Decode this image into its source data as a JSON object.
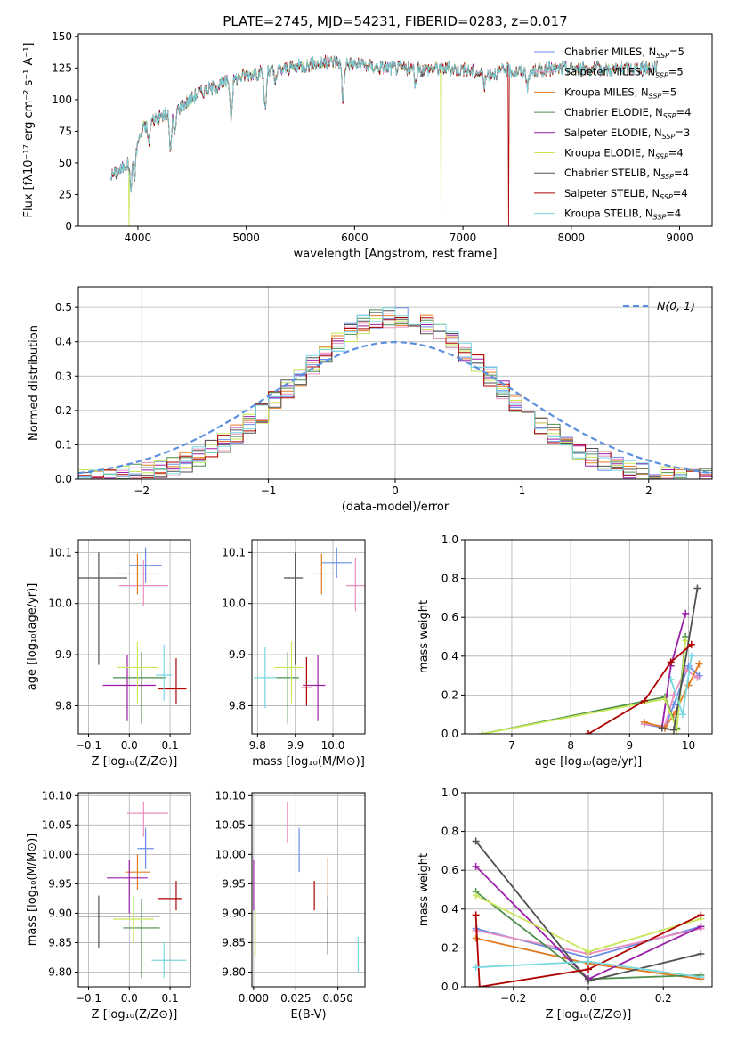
{
  "figure": {
    "title": "PLATE=2745, MJD=54231, FIBERID=0283, z=0.017"
  },
  "colors": {
    "Chabrier MILES": "#6b8ee8",
    "Salpeter MILES": "#ec8fbe",
    "Kroupa MILES": "#e07a20",
    "Chabrier ELODIE": "#4d8f4d",
    "Salpeter ELODIE": "#9b1fa8",
    "Kroupa ELODIE": "#c8e85a",
    "Chabrier STELIB": "#505050",
    "Salpeter STELIB": "#b00000",
    "Kroupa STELIB": "#78d8e0"
  },
  "chart_data": [
    {
      "id": "spectrum",
      "type": "line",
      "xlabel": "wavelength [Angstrom, rest frame]",
      "ylabel": "Flux [f_λ 10^-17 erg cm^-2 s^-1 A^-1]",
      "xlim": [
        3450,
        9300
      ],
      "ylim": [
        0,
        152
      ],
      "xticks": [
        4000,
        5000,
        6000,
        7000,
        8000,
        9000
      ],
      "yticks": [
        0,
        25,
        50,
        75,
        100,
        125,
        150
      ],
      "grid": false,
      "legend_position": "right",
      "legend": [
        {
          "label": "Chabrier MILES",
          "nssp": "5"
        },
        {
          "label": "Salpeter MILES",
          "nssp": "5"
        },
        {
          "label": "Kroupa MILES",
          "nssp": "5"
        },
        {
          "label": "Chabrier ELODIE",
          "nssp": "4"
        },
        {
          "label": "Salpeter ELODIE",
          "nssp": "3"
        },
        {
          "label": "Kroupa ELODIE",
          "nssp": "4"
        },
        {
          "label": "Chabrier STELIB",
          "nssp": "4"
        },
        {
          "label": "Salpeter STELIB",
          "nssp": "4"
        },
        {
          "label": "Kroupa STELIB",
          "nssp": "4"
        }
      ],
      "continuum": {
        "x": [
          3750,
          3850,
          3950,
          4050,
          4150,
          4250,
          4350,
          4450,
          4550,
          4700,
          4850,
          5000,
          5200,
          5400,
          5600,
          5800,
          6000,
          6200,
          6400,
          6600,
          6800,
          7000,
          7200,
          7400,
          7600,
          7800,
          8000,
          8200,
          8400,
          8600,
          8800
        ],
        "y": [
          40,
          45,
          55,
          78,
          85,
          88,
          92,
          98,
          105,
          110,
          115,
          120,
          122,
          125,
          128,
          130,
          128,
          126,
          125,
          124,
          125,
          124,
          120,
          123,
          122,
          124,
          125,
          124,
          124,
          125,
          126
        ]
      },
      "absorption_dips": [
        {
          "x": 3934,
          "depth": 22
        },
        {
          "x": 3969,
          "depth": 20
        },
        {
          "x": 4101,
          "depth": 15
        },
        {
          "x": 4300,
          "depth": 30
        },
        {
          "x": 4340,
          "depth": 20
        },
        {
          "x": 4861,
          "depth": 28
        },
        {
          "x": 5175,
          "depth": 30
        },
        {
          "x": 5270,
          "depth": 10
        },
        {
          "x": 5893,
          "depth": 30
        },
        {
          "x": 6563,
          "depth": 12
        },
        {
          "x": 7200,
          "depth": 8
        },
        {
          "x": 7600,
          "depth": 12
        }
      ],
      "spikes": [
        {
          "series": "Kroupa ELODIE",
          "x": 3920
        },
        {
          "series": "Kroupa ELODIE",
          "x": 6800
        },
        {
          "series": "Salpeter STELIB",
          "x": 7420
        }
      ]
    },
    {
      "id": "residuals",
      "type": "histogram",
      "xlabel": "(data-model)/error",
      "ylabel": "Normed distribution",
      "xlim": [
        -2.5,
        2.5
      ],
      "ylim": [
        0,
        0.56
      ],
      "xticks": [
        -2,
        -1,
        0,
        1,
        2
      ],
      "yticks": [
        0.0,
        0.1,
        0.2,
        0.3,
        0.4,
        0.5
      ],
      "grid": true,
      "legend_position": "top-right",
      "legend_label": "N(0, 1)",
      "bin_width": 0.1
    },
    {
      "id": "age_vs_Z",
      "type": "scatter",
      "xlabel": "Z [log10(Z/Z_sun)]",
      "ylabel": "age [log10(age/yr)]",
      "xlim": [
        -0.125,
        0.15
      ],
      "ylim": [
        9.745,
        10.125
      ],
      "xticks": [
        -0.1,
        0.0,
        0.1
      ],
      "yticks": [
        9.8,
        9.9,
        10.0,
        10.1
      ],
      "grid": true,
      "points": [
        {
          "series": "Chabrier MILES",
          "x": 0.04,
          "y": 10.075,
          "xerr": [
            0.04,
            0.04
          ],
          "yerr": [
            0.035,
            0.035
          ]
        },
        {
          "series": "Salpeter MILES",
          "x": 0.035,
          "y": 10.035,
          "xerr": [
            0.06,
            0.06
          ],
          "yerr": [
            0.04,
            0.05
          ]
        },
        {
          "series": "Kroupa MILES",
          "x": 0.02,
          "y": 10.058,
          "xerr": [
            0.05,
            0.05
          ],
          "yerr": [
            0.04,
            0.04
          ]
        },
        {
          "series": "Chabrier ELODIE",
          "x": 0.03,
          "y": 9.855,
          "xerr": [
            0.07,
            0.06
          ],
          "yerr": [
            0.09,
            0.05
          ]
        },
        {
          "series": "Salpeter ELODIE",
          "x": -0.005,
          "y": 9.84,
          "xerr": [
            0.06,
            0.07
          ],
          "yerr": [
            0.07,
            0.06
          ]
        },
        {
          "series": "Kroupa ELODIE",
          "x": 0.02,
          "y": 9.875,
          "xerr": [
            0.05,
            0.05
          ],
          "yerr": [
            0.07,
            0.05
          ]
        },
        {
          "series": "Chabrier STELIB",
          "x": -0.075,
          "y": 10.05,
          "xerr": [
            0.07,
            0.07
          ],
          "yerr": [
            0.17,
            0.05
          ]
        },
        {
          "series": "Salpeter STELIB",
          "x": 0.115,
          "y": 9.833,
          "xerr": [
            0.045,
            0.025
          ],
          "yerr": [
            0.03,
            0.06
          ]
        },
        {
          "series": "Kroupa STELIB",
          "x": 0.085,
          "y": 9.86,
          "xerr": [
            0.02,
            0.02
          ],
          "yerr": [
            0.05,
            0.06
          ]
        }
      ]
    },
    {
      "id": "age_vs_mass",
      "type": "scatter",
      "xlabel": "mass [log10(M/M_sun)]",
      "ylabel": "",
      "xlim": [
        9.785,
        10.085
      ],
      "ylim": [
        9.745,
        10.125
      ],
      "xticks": [
        9.8,
        9.9,
        10.0
      ],
      "yticks": [
        9.8,
        9.9,
        10.0,
        10.1
      ],
      "grid": true,
      "points": [
        {
          "series": "Chabrier MILES",
          "x": 10.01,
          "y": 10.08,
          "xerr": [
            0.04,
            0.04
          ],
          "yerr": [
            0.03,
            0.03
          ]
        },
        {
          "series": "Salpeter MILES",
          "x": 10.06,
          "y": 10.035,
          "xerr": [
            0.025,
            0.025
          ],
          "yerr": [
            0.05,
            0.055
          ]
        },
        {
          "series": "Kroupa MILES",
          "x": 9.97,
          "y": 10.058,
          "xerr": [
            0.025,
            0.025
          ],
          "yerr": [
            0.04,
            0.04
          ]
        },
        {
          "series": "Chabrier ELODIE",
          "x": 9.88,
          "y": 9.855,
          "xerr": [
            0.03,
            0.03
          ],
          "yerr": [
            0.09,
            0.05
          ]
        },
        {
          "series": "Salpeter ELODIE",
          "x": 9.96,
          "y": 9.84,
          "xerr": [
            0.04,
            0.02
          ],
          "yerr": [
            0.07,
            0.06
          ]
        },
        {
          "series": "Kroupa ELODIE",
          "x": 9.89,
          "y": 9.875,
          "xerr": [
            0.045,
            0.03
          ],
          "yerr": [
            0.07,
            0.05
          ]
        },
        {
          "series": "Chabrier STELIB",
          "x": 9.9,
          "y": 10.05,
          "xerr": [
            0.03,
            0.02
          ],
          "yerr": [
            0.17,
            0.05
          ]
        },
        {
          "series": "Salpeter STELIB",
          "x": 9.93,
          "y": 9.835,
          "xerr": [
            0.015,
            0.015
          ],
          "yerr": [
            0.035,
            0.06
          ]
        },
        {
          "series": "Kroupa STELIB",
          "x": 9.82,
          "y": 9.855,
          "xerr": [
            0.03,
            0.03
          ],
          "yerr": [
            0.06,
            0.06
          ]
        }
      ]
    },
    {
      "id": "weight_vs_age",
      "type": "line",
      "xlabel": "age [log10(age/yr)]",
      "ylabel": "mass weight",
      "xlim": [
        6.2,
        10.4
      ],
      "ylim": [
        0,
        1
      ],
      "xticks": [
        7,
        8,
        9,
        10
      ],
      "yticks": [
        0.0,
        0.2,
        0.4,
        0.6,
        0.8,
        1.0
      ],
      "grid": true,
      "series": [
        {
          "name": "Chabrier MILES",
          "x": [
            9.25,
            9.6,
            9.75,
            10.0,
            10.18
          ],
          "y": [
            0.05,
            0.03,
            0.15,
            0.35,
            0.3
          ]
        },
        {
          "name": "Salpeter MILES",
          "x": [
            9.25,
            9.6,
            9.75,
            9.95,
            10.15
          ],
          "y": [
            0.05,
            0.04,
            0.2,
            0.33,
            0.29
          ]
        },
        {
          "name": "Kroupa MILES",
          "x": [
            9.25,
            9.6,
            9.75,
            10.0,
            10.18
          ],
          "y": [
            0.06,
            0.03,
            0.1,
            0.25,
            0.36
          ]
        },
        {
          "name": "Chabrier ELODIE",
          "x": [
            6.5,
            9.6,
            9.8,
            9.95
          ],
          "y": [
            0.0,
            0.19,
            0.03,
            0.5
          ]
        },
        {
          "name": "Salpeter ELODIE",
          "x": [
            9.55,
            9.7,
            9.95
          ],
          "y": [
            0.03,
            0.35,
            0.62
          ]
        },
        {
          "name": "Kroupa ELODIE",
          "x": [
            6.5,
            9.6,
            9.8,
            9.95
          ],
          "y": [
            0.0,
            0.18,
            0.02,
            0.48
          ]
        },
        {
          "name": "Chabrier STELIB",
          "x": [
            9.55,
            9.75,
            10.15
          ],
          "y": [
            0.03,
            0.02,
            0.75
          ]
        },
        {
          "name": "Salpeter STELIB",
          "x": [
            8.3,
            9.25,
            9.7,
            10.05
          ],
          "y": [
            0.0,
            0.17,
            0.37,
            0.46
          ]
        },
        {
          "name": "Kroupa STELIB",
          "x": [
            9.7,
            9.9,
            10.05
          ],
          "y": [
            0.28,
            0.1,
            0.4
          ]
        }
      ]
    },
    {
      "id": "mass_vs_Z",
      "type": "scatter",
      "xlabel": "Z [log10(Z/Z_sun)]",
      "ylabel": "mass [log10(M/M_sun)]",
      "xlim": [
        -0.125,
        0.15
      ],
      "ylim": [
        9.775,
        10.105
      ],
      "xticks": [
        -0.1,
        0.0,
        0.1
      ],
      "yticks": [
        9.8,
        9.85,
        9.9,
        9.95,
        10.0,
        10.05,
        10.1
      ],
      "grid": true,
      "points": [
        {
          "series": "Chabrier MILES",
          "x": 0.04,
          "y": 10.01,
          "xerr": [
            0.02,
            0.02
          ],
          "yerr": [
            0.035,
            0.035
          ]
        },
        {
          "series": "Salpeter MILES",
          "x": 0.035,
          "y": 10.07,
          "xerr": [
            0.04,
            0.06
          ],
          "yerr": [
            0.04,
            0.02
          ]
        },
        {
          "series": "Kroupa MILES",
          "x": 0.02,
          "y": 9.97,
          "xerr": [
            0.03,
            0.03
          ],
          "yerr": [
            0.03,
            0.03
          ]
        },
        {
          "series": "Chabrier ELODIE",
          "x": 0.03,
          "y": 9.875,
          "xerr": [
            0.045,
            0.045
          ],
          "yerr": [
            0.085,
            0.05
          ]
        },
        {
          "series": "Salpeter ELODIE",
          "x": 0.0,
          "y": 9.96,
          "xerr": [
            0.055,
            0.045
          ],
          "yerr": [
            0.06,
            0.03
          ]
        },
        {
          "series": "Kroupa ELODIE",
          "x": 0.01,
          "y": 9.89,
          "xerr": [
            0.05,
            0.05
          ],
          "yerr": [
            0.04,
            0.04
          ]
        },
        {
          "series": "Chabrier STELIB",
          "x": -0.075,
          "y": 9.895,
          "xerr": [
            0.09,
            0.15
          ],
          "yerr": [
            0.055,
            0.035
          ]
        },
        {
          "series": "Salpeter STELIB",
          "x": 0.115,
          "y": 9.925,
          "xerr": [
            0.045,
            0.015
          ],
          "yerr": [
            0.02,
            0.03
          ]
        },
        {
          "series": "Kroupa STELIB",
          "x": 0.085,
          "y": 9.82,
          "xerr": [
            0.03,
            0.055
          ],
          "yerr": [
            0.03,
            0.03
          ]
        }
      ]
    },
    {
      "id": "mass_vs_EBV",
      "type": "scatter",
      "xlabel": "E(B-V)",
      "ylabel": "",
      "xlim": [
        -0.001,
        0.066
      ],
      "ylim": [
        9.775,
        10.105
      ],
      "xticks": [
        0.0,
        0.025,
        0.05
      ],
      "xticklabels": [
        "0.000",
        "0.025",
        "0.050"
      ],
      "yticks": [
        9.8,
        9.85,
        9.9,
        9.95,
        10.0,
        10.05,
        10.1
      ],
      "grid": true,
      "points": [
        {
          "series": "Chabrier MILES",
          "x": 0.027,
          "y": 10.005,
          "xerr": [
            0,
            0
          ],
          "yerr": [
            0.035,
            0.04
          ]
        },
        {
          "series": "Salpeter MILES",
          "x": 0.02,
          "y": 10.045,
          "xerr": [
            0,
            0
          ],
          "yerr": [
            0.025,
            0.045
          ]
        },
        {
          "series": "Kroupa MILES",
          "x": 0.044,
          "y": 9.96,
          "xerr": [
            0,
            0
          ],
          "yerr": [
            0.04,
            0.035
          ]
        },
        {
          "series": "Chabrier ELODIE",
          "x": 0.044,
          "y": 9.88,
          "xerr": [
            0,
            0
          ],
          "yerr": [
            0.05,
            0.03
          ]
        },
        {
          "series": "Salpeter ELODIE",
          "x": 0.0,
          "y": 9.945,
          "xerr": [
            0,
            0
          ],
          "yerr": [
            0.04,
            0.045
          ]
        },
        {
          "series": "Kroupa ELODIE",
          "x": 0.001,
          "y": 9.865,
          "xerr": [
            0,
            0
          ],
          "yerr": [
            0.04,
            0.04
          ]
        },
        {
          "series": "Chabrier STELIB",
          "x": 0.044,
          "y": 9.9,
          "xerr": [
            0,
            0
          ],
          "yerr": [
            0.07,
            0.03
          ]
        },
        {
          "series": "Salpeter STELIB",
          "x": 0.036,
          "y": 9.925,
          "xerr": [
            0,
            0
          ],
          "yerr": [
            0.02,
            0.03
          ]
        },
        {
          "series": "Kroupa STELIB",
          "x": 0.062,
          "y": 9.83,
          "xerr": [
            0,
            0
          ],
          "yerr": [
            0.03,
            0.03
          ]
        }
      ]
    },
    {
      "id": "weight_vs_Z",
      "type": "line",
      "xlabel": "Z [log10(Z/Z_sun)]",
      "ylabel": "mass weight",
      "xlim": [
        -0.33,
        0.33
      ],
      "ylim": [
        0,
        1
      ],
      "xticks": [
        -0.2,
        0.0,
        0.2
      ],
      "yticks": [
        0.0,
        0.2,
        0.4,
        0.6,
        0.8,
        1.0
      ],
      "grid": true,
      "series": [
        {
          "name": "Chabrier MILES",
          "x": [
            -0.3,
            0.0,
            0.3
          ],
          "y": [
            0.3,
            0.15,
            0.31
          ]
        },
        {
          "name": "Salpeter MILES",
          "x": [
            -0.3,
            0.0,
            0.3
          ],
          "y": [
            0.29,
            0.17,
            0.3
          ]
        },
        {
          "name": "Kroupa MILES",
          "x": [
            -0.3,
            0.0,
            0.3
          ],
          "y": [
            0.25,
            0.12,
            0.04
          ]
        },
        {
          "name": "Chabrier ELODIE",
          "x": [
            -0.3,
            0.0,
            0.3
          ],
          "y": [
            0.49,
            0.04,
            0.06
          ]
        },
        {
          "name": "Salpeter ELODIE",
          "x": [
            -0.3,
            0.0,
            0.3
          ],
          "y": [
            0.62,
            0.04,
            0.31
          ]
        },
        {
          "name": "Kroupa ELODIE",
          "x": [
            -0.3,
            0.0,
            0.3
          ],
          "y": [
            0.47,
            0.18,
            0.35
          ]
        },
        {
          "name": "Chabrier STELIB",
          "x": [
            -0.3,
            0.0,
            0.3
          ],
          "y": [
            0.75,
            0.03,
            0.17
          ]
        },
        {
          "name": "Salpeter STELIB",
          "x": [
            -0.3,
            -0.29,
            0.0,
            0.3
          ],
          "y": [
            0.37,
            0.0,
            0.09,
            0.37
          ]
        },
        {
          "name": "Kroupa STELIB",
          "x": [
            -0.3,
            0.0,
            0.3
          ],
          "y": [
            0.1,
            0.13,
            0.05
          ]
        }
      ]
    }
  ]
}
